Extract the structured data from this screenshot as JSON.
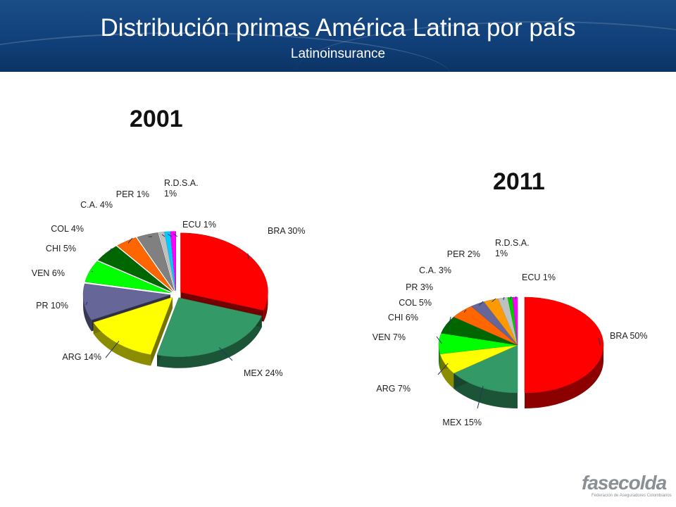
{
  "header": {
    "title": "Distribución primas América Latina por país",
    "subtitle": "Latinoinsurance"
  },
  "logo": {
    "name": "fasecolda",
    "tagline": "Federación de Aseguradores Colombianos"
  },
  "chart_data": [
    {
      "type": "pie",
      "title": "2001",
      "categories": [
        "BRA",
        "MEX",
        "ARG",
        "PR",
        "VEN",
        "CHI",
        "COL",
        "C.A.",
        "PER",
        "R.D.S.A.",
        "ECU"
      ],
      "values": [
        30,
        24,
        14,
        10,
        6,
        5,
        4,
        4,
        1,
        1,
        1
      ],
      "labels": [
        "BRA 30%",
        "MEX 24%",
        "ARG 14%",
        "PR 10%",
        "VEN 6%",
        "CHI 5%",
        "COL 4%",
        "C.A. 4%",
        "PER 1%",
        "R.D.S.A. 1%",
        "ECU 1%"
      ],
      "colors": [
        "#ff0000",
        "#339966",
        "#ffff00",
        "#666699",
        "#00ff00",
        "#006600",
        "#ff6600",
        "#808080",
        "#c0c0c0",
        "#00ccff",
        "#ff00ff"
      ],
      "exploded": "all slices"
    },
    {
      "type": "pie",
      "title": "2011",
      "categories": [
        "BRA",
        "MEX",
        "ARG",
        "VEN",
        "CHI",
        "COL",
        "PR",
        "C.A.",
        "PER",
        "R.D.S.A.",
        "ECU"
      ],
      "values": [
        50,
        15,
        7,
        7,
        6,
        5,
        3,
        3,
        2,
        1,
        1
      ],
      "labels": [
        "BRA 50%",
        "MEX 15%",
        "ARG 7%",
        "VEN 7%",
        "CHI 6%",
        "COL 5%",
        "PR 3%",
        "C.A. 3%",
        "PER 2%",
        "R.D.S.A. 1%",
        "ECU 1%"
      ],
      "colors": [
        "#ff0000",
        "#339966",
        "#ffff00",
        "#00ff00",
        "#006600",
        "#ff6600",
        "#666699",
        "#ff9900",
        "#c0c0c0",
        "#00cc00",
        "#ff00ff"
      ],
      "exploded": "BRA slice"
    }
  ]
}
